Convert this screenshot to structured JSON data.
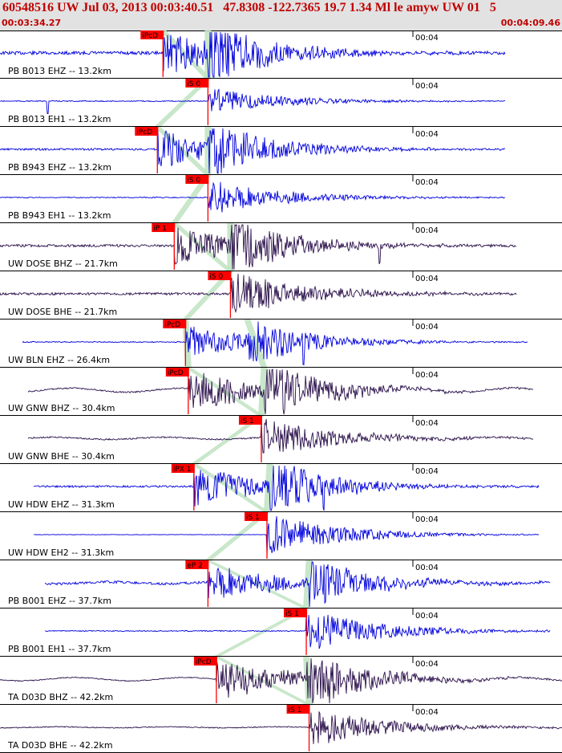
{
  "header": {
    "title": "60548516 UW Jul 03, 2013 00:03:40.51   47.8308 -122.7365 19.7 1.34 Ml le amyw UW 01   5",
    "start_time": "00:03:34.27",
    "end_time": "00:04:09.46"
  },
  "colors": {
    "header_bg": "#e2e2e2",
    "header_text": "#c00000",
    "trace_blue": "#0000dd",
    "trace_dark": "#2a0f4a",
    "pick": "#ff0000",
    "window": "#bfe3c1"
  },
  "traces": [
    {
      "label": "PB B013 EHZ -- 13.2km",
      "time_mark": "00:04",
      "color": "blue",
      "amp": 0.45,
      "noise": 0.07,
      "onset": 0.29,
      "pick": "iPcD",
      "pick_t": 0.29,
      "x0": 0.0,
      "x1": 0.9,
      "s_onset": 0.37,
      "spike": null,
      "sine": 0
    },
    {
      "label": "PB B013 EH1 -- 13.2km",
      "time_mark": "00:04",
      "color": "blue",
      "amp": 0.28,
      "noise": 0.02,
      "onset": 0.37,
      "pick": "iS 0",
      "pick_t": 0.37,
      "x0": 0.0,
      "x1": 0.9,
      "s_onset": null,
      "spike": 0.085,
      "sine": 0
    },
    {
      "label": "PB B943 EHZ -- 13.2km",
      "time_mark": "00:04",
      "color": "blue",
      "amp": 0.42,
      "noise": 0.04,
      "onset": 0.28,
      "pick": "iPcD",
      "pick_t": 0.28,
      "x0": 0.0,
      "x1": 0.9,
      "s_onset": 0.37,
      "spike": null,
      "sine": 0
    },
    {
      "label": "PB B943 EH1 -- 13.2km",
      "time_mark": "00:04",
      "color": "blue",
      "amp": 0.38,
      "noise": 0.02,
      "onset": 0.37,
      "pick": "iS 0",
      "pick_t": 0.37,
      "x0": 0.0,
      "x1": 0.9,
      "s_onset": null,
      "spike": null,
      "sine": 0
    },
    {
      "label": "UW DOSE BHZ -- 21.7km",
      "time_mark": "00:04",
      "color": "dark",
      "amp": 0.42,
      "noise": 0.05,
      "onset": 0.31,
      "pick": "iP 1",
      "pick_t": 0.31,
      "x0": 0.0,
      "x1": 0.92,
      "s_onset": 0.41,
      "spike": 0.675,
      "sine": 0
    },
    {
      "label": "UW DOSE BHE -- 21.7km",
      "time_mark": "00:04",
      "color": "dark",
      "amp": 0.48,
      "noise": 0.05,
      "onset": 0.41,
      "pick": "iS 0",
      "pick_t": 0.41,
      "x0": 0.0,
      "x1": 0.92,
      "s_onset": null,
      "spike": null,
      "sine": 0
    },
    {
      "label": "UW BLN EHZ -- 26.4km",
      "time_mark": "00:04",
      "color": "blue",
      "amp": 0.35,
      "noise": 0.02,
      "onset": 0.33,
      "pick": "iPcD",
      "pick_t": 0.33,
      "x0": 0.04,
      "x1": 0.94,
      "s_onset": 0.44,
      "spike": 0.54,
      "sine": 0
    },
    {
      "label": "UW GNW BHZ -- 30.4km",
      "time_mark": "00:04",
      "color": "dark",
      "amp": 0.45,
      "noise": 0.03,
      "onset": 0.335,
      "pick": "iPcD",
      "pick_t": 0.335,
      "x0": 0.05,
      "x1": 0.95,
      "s_onset": 0.47,
      "spike": 0.505,
      "sine": 0.12
    },
    {
      "label": "UW GNW BHE -- 30.4km",
      "time_mark": "00:04",
      "color": "dark",
      "amp": 0.42,
      "noise": 0.03,
      "onset": 0.465,
      "pick": "iS 1",
      "pick_t": 0.465,
      "x0": 0.05,
      "x1": 0.95,
      "s_onset": null,
      "spike": null,
      "sine": 0.06
    },
    {
      "label": "UW HDW EHZ -- 31.3km",
      "time_mark": "00:04",
      "color": "blue",
      "amp": 0.45,
      "noise": 0.04,
      "onset": 0.345,
      "pick": "iPX 1",
      "pick_t": 0.345,
      "x0": 0.06,
      "x1": 0.96,
      "s_onset": 0.48,
      "spike": 0.575,
      "sine": 0
    },
    {
      "label": "UW HDW EH2 -- 31.3km",
      "time_mark": "00:04",
      "color": "blue",
      "amp": 0.45,
      "noise": 0.01,
      "onset": 0.475,
      "pick": "iS 1",
      "pick_t": 0.475,
      "x0": 0.06,
      "x1": 0.96,
      "s_onset": null,
      "spike": null,
      "sine": 0
    },
    {
      "label": "PB B001 EHZ -- 37.7km",
      "time_mark": "00:04",
      "color": "blue",
      "amp": 0.42,
      "noise": 0.05,
      "onset": 0.37,
      "pick": "eP 2",
      "pick_t": 0.37,
      "x0": 0.08,
      "x1": 0.98,
      "s_onset": 0.55,
      "spike": null,
      "sine": 0.05
    },
    {
      "label": "PB B001 EH1 -- 37.7km",
      "time_mark": "00:04",
      "color": "blue",
      "amp": 0.45,
      "noise": 0.02,
      "onset": 0.545,
      "pick": "iS 1",
      "pick_t": 0.545,
      "x0": 0.08,
      "x1": 0.98,
      "s_onset": null,
      "spike": null,
      "sine": 0
    },
    {
      "label": "TA D03D BHZ -- 42.2km",
      "time_mark": "00:04",
      "color": "dark",
      "amp": 0.45,
      "noise": 0.02,
      "onset": 0.385,
      "pick": "iPcD",
      "pick_t": 0.385,
      "x0": 0.0,
      "x1": 1.0,
      "s_onset": 0.545,
      "spike": 0.585,
      "sine": 0.1
    },
    {
      "label": "TA D03D BHE -- 42.2km",
      "time_mark": "00:04",
      "color": "dark",
      "amp": 0.42,
      "noise": 0.02,
      "onset": 0.55,
      "pick": "iS 1",
      "pick_t": 0.55,
      "x0": 0.0,
      "x1": 1.0,
      "s_onset": null,
      "spike": null,
      "sine": 0.03
    }
  ]
}
